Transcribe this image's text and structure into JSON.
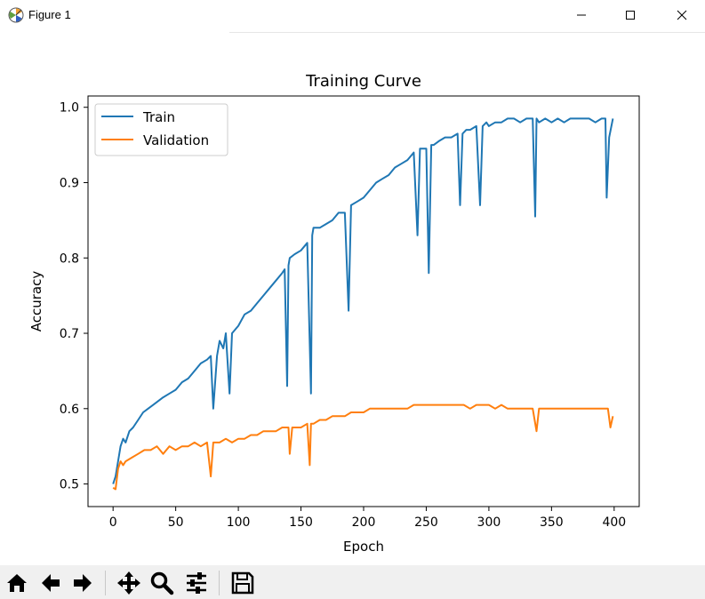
{
  "window": {
    "title": "Figure 1"
  },
  "toolbar": {
    "buttons": [
      "home-icon",
      "back-arrow-icon",
      "forward-arrow-icon",
      "pan-icon",
      "zoom-icon",
      "configure-subplots-icon",
      "save-icon"
    ]
  },
  "chart_data": {
    "type": "line",
    "title": "Training Curve",
    "xlabel": "Epoch",
    "ylabel": "Accuracy",
    "xlim": [
      -20,
      420
    ],
    "ylim": [
      0.47,
      1.015
    ],
    "xticks": [
      0,
      50,
      100,
      150,
      200,
      250,
      300,
      350,
      400
    ],
    "yticks": [
      0.5,
      0.6,
      0.7,
      0.8,
      0.9,
      1.0
    ],
    "xtick_labels": [
      "0",
      "50",
      "100",
      "150",
      "200",
      "250",
      "300",
      "350",
      "400"
    ],
    "ytick_labels": [
      "0.5",
      "0.6",
      "0.7",
      "0.8",
      "0.9",
      "1.0"
    ],
    "grid": false,
    "legend": "upper left",
    "series": [
      {
        "name": "Train",
        "color": "#1f77b4",
        "x": [
          0,
          2,
          4,
          6,
          8,
          10,
          13,
          16,
          20,
          24,
          28,
          32,
          36,
          40,
          45,
          50,
          55,
          60,
          65,
          70,
          75,
          78,
          80,
          83,
          85,
          88,
          90,
          93,
          95,
          100,
          105,
          110,
          115,
          120,
          125,
          130,
          135,
          137,
          139,
          140,
          141,
          145,
          150,
          155,
          158,
          159,
          160,
          165,
          170,
          175,
          180,
          185,
          188,
          190,
          195,
          200,
          205,
          210,
          215,
          220,
          225,
          230,
          235,
          240,
          243,
          245,
          250,
          252,
          254,
          256,
          260,
          265,
          270,
          275,
          277,
          279,
          282,
          285,
          290,
          293,
          295,
          298,
          300,
          305,
          310,
          315,
          320,
          325,
          330,
          335,
          337,
          338,
          340,
          345,
          350,
          355,
          360,
          365,
          370,
          375,
          380,
          385,
          390,
          393,
          394,
          396,
          399
        ],
        "y": [
          0.5,
          0.51,
          0.53,
          0.55,
          0.56,
          0.555,
          0.57,
          0.575,
          0.585,
          0.595,
          0.6,
          0.605,
          0.61,
          0.615,
          0.62,
          0.625,
          0.635,
          0.64,
          0.65,
          0.66,
          0.665,
          0.67,
          0.6,
          0.67,
          0.69,
          0.68,
          0.7,
          0.62,
          0.7,
          0.71,
          0.725,
          0.73,
          0.74,
          0.75,
          0.76,
          0.77,
          0.78,
          0.785,
          0.63,
          0.79,
          0.8,
          0.805,
          0.81,
          0.82,
          0.62,
          0.83,
          0.84,
          0.84,
          0.845,
          0.85,
          0.86,
          0.86,
          0.73,
          0.87,
          0.875,
          0.88,
          0.89,
          0.9,
          0.905,
          0.91,
          0.92,
          0.925,
          0.93,
          0.94,
          0.83,
          0.945,
          0.945,
          0.78,
          0.95,
          0.95,
          0.955,
          0.96,
          0.96,
          0.965,
          0.87,
          0.965,
          0.97,
          0.97,
          0.975,
          0.87,
          0.975,
          0.98,
          0.975,
          0.98,
          0.98,
          0.985,
          0.985,
          0.98,
          0.985,
          0.985,
          0.855,
          0.985,
          0.98,
          0.985,
          0.98,
          0.985,
          0.98,
          0.985,
          0.985,
          0.985,
          0.985,
          0.98,
          0.985,
          0.985,
          0.88,
          0.96,
          0.985
        ]
      },
      {
        "name": "Validation",
        "color": "#ff7f0e",
        "x": [
          0,
          2,
          4,
          6,
          8,
          10,
          15,
          20,
          25,
          30,
          35,
          40,
          45,
          50,
          55,
          60,
          65,
          70,
          75,
          78,
          80,
          85,
          90,
          95,
          100,
          105,
          110,
          115,
          120,
          125,
          130,
          135,
          140,
          141,
          143,
          145,
          150,
          155,
          157,
          158,
          160,
          165,
          170,
          175,
          180,
          185,
          190,
          195,
          200,
          205,
          210,
          215,
          220,
          225,
          230,
          235,
          240,
          245,
          250,
          255,
          260,
          265,
          270,
          275,
          280,
          285,
          290,
          295,
          300,
          305,
          310,
          315,
          320,
          325,
          330,
          335,
          338,
          340,
          345,
          350,
          355,
          360,
          365,
          370,
          375,
          380,
          385,
          390,
          395,
          397,
          399
        ],
        "y": [
          0.495,
          0.493,
          0.52,
          0.53,
          0.525,
          0.53,
          0.535,
          0.54,
          0.545,
          0.545,
          0.55,
          0.54,
          0.55,
          0.545,
          0.55,
          0.55,
          0.555,
          0.55,
          0.555,
          0.51,
          0.555,
          0.555,
          0.56,
          0.555,
          0.56,
          0.56,
          0.565,
          0.565,
          0.57,
          0.57,
          0.57,
          0.575,
          0.575,
          0.54,
          0.575,
          0.575,
          0.575,
          0.58,
          0.525,
          0.58,
          0.58,
          0.585,
          0.585,
          0.59,
          0.59,
          0.59,
          0.595,
          0.595,
          0.595,
          0.6,
          0.6,
          0.6,
          0.6,
          0.6,
          0.6,
          0.6,
          0.605,
          0.605,
          0.605,
          0.605,
          0.605,
          0.605,
          0.605,
          0.605,
          0.605,
          0.6,
          0.605,
          0.605,
          0.605,
          0.6,
          0.605,
          0.6,
          0.6,
          0.6,
          0.6,
          0.6,
          0.57,
          0.6,
          0.6,
          0.6,
          0.6,
          0.6,
          0.6,
          0.6,
          0.6,
          0.6,
          0.6,
          0.6,
          0.6,
          0.575,
          0.59
        ]
      }
    ]
  }
}
